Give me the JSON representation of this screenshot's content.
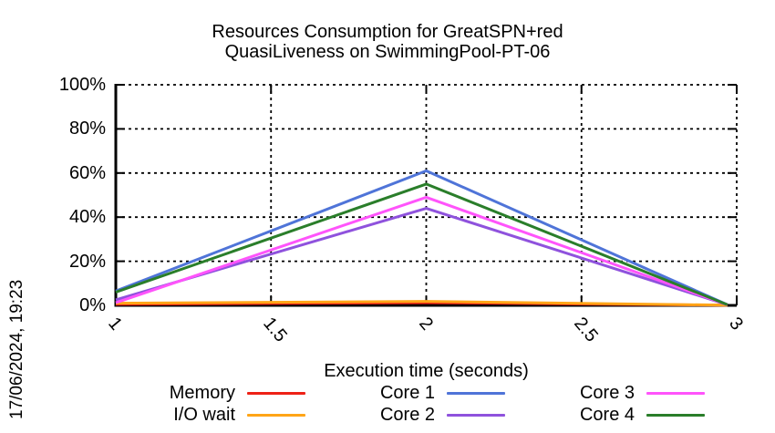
{
  "title": {
    "line1": "Resources Consumption for GreatSPN+red",
    "line2": "QuasiLiveness on SwimmingPool-PT-06"
  },
  "date_stamp": "17/06/2024, 19:23",
  "chart_data": {
    "type": "line",
    "title": "Resources Consumption for GreatSPN+red QuasiLiveness on SwimmingPool-PT-06",
    "xlabel": "Execution time (seconds)",
    "ylabel": "",
    "xlim": [
      1,
      3
    ],
    "ylim": [
      0,
      100
    ],
    "xticks": [
      1,
      1.5,
      2,
      2.5,
      3
    ],
    "xtick_labels": [
      "1",
      "1.5",
      "2",
      "2.5",
      "3"
    ],
    "yticks": [
      0,
      20,
      40,
      60,
      80,
      100
    ],
    "ytick_labels": [
      "0%",
      "20%",
      "40%",
      "60%",
      "80%",
      "100%"
    ],
    "grid": true,
    "grid_style": "dashed",
    "legend_position": "bottom",
    "series": [
      {
        "name": "Memory",
        "color": "#ee2116",
        "x": [
          1,
          2,
          2.97
        ],
        "y": [
          0.5,
          1.2,
          0.1
        ]
      },
      {
        "name": "I/O wait",
        "color": "#ffa517",
        "x": [
          1,
          2,
          2.97
        ],
        "y": [
          1.0,
          1.8,
          0.1
        ]
      },
      {
        "name": "Core 1",
        "color": "#4f74d8",
        "x": [
          1,
          2,
          2.97
        ],
        "y": [
          6.5,
          61,
          0.3
        ]
      },
      {
        "name": "Core 2",
        "color": "#8f52dd",
        "x": [
          1,
          2,
          2.97
        ],
        "y": [
          2.5,
          44,
          0.3
        ]
      },
      {
        "name": "Core 3",
        "color": "#ff54fb",
        "x": [
          1,
          2,
          2.97
        ],
        "y": [
          1.2,
          49,
          0.3
        ]
      },
      {
        "name": "Core 4",
        "color": "#2a7e2a",
        "x": [
          1,
          2,
          2.97
        ],
        "y": [
          6.0,
          55,
          0.3
        ]
      }
    ]
  }
}
